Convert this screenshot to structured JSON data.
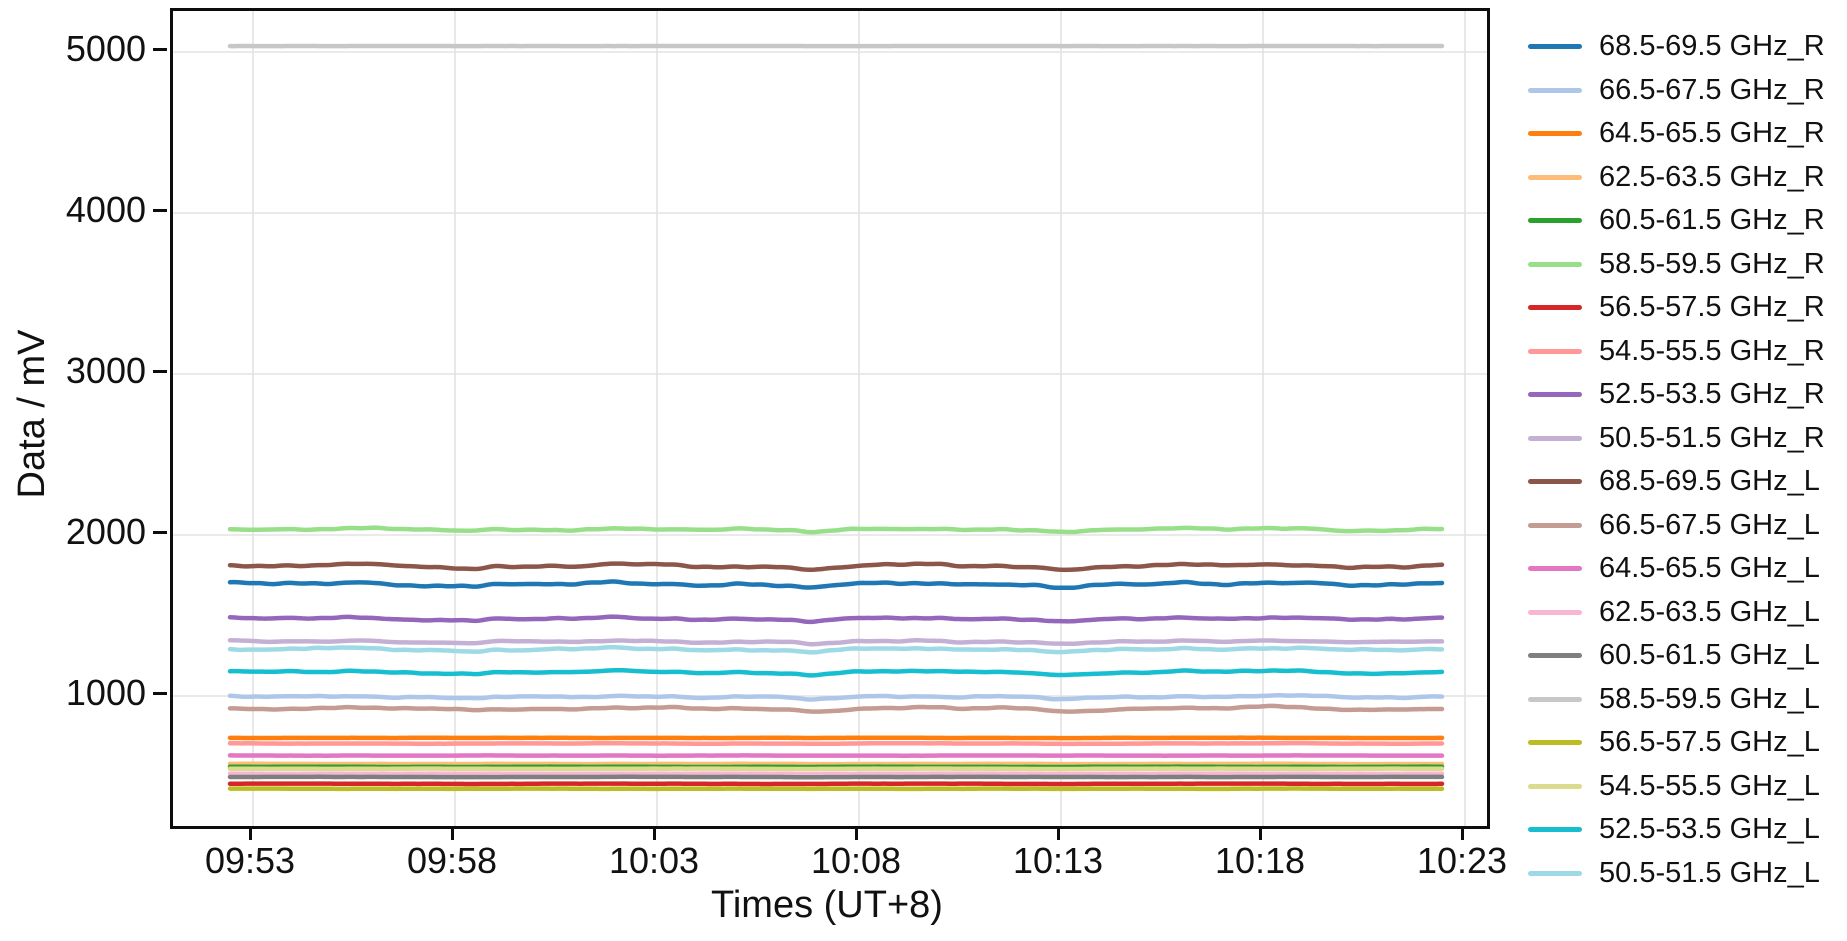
{
  "chart_data": {
    "type": "line",
    "title": "",
    "xlabel": "Times (UT+8)",
    "ylabel": "Data / mV",
    "x_tick_labels": [
      "09:53",
      "09:58",
      "10:03",
      "10:08",
      "10:13",
      "10:18",
      "10:23"
    ],
    "x_tick_minutes": [
      0,
      5,
      10,
      15,
      20,
      25,
      30
    ],
    "y_ticks": [
      1000,
      2000,
      3000,
      4000,
      5000
    ],
    "ylim": [
      193,
      5255
    ],
    "x_start_min": -0.57,
    "x_end_min": 29.43,
    "grid": true,
    "legend_position": "right-outside",
    "common_dips_min": [
      5.5,
      13.8,
      20.0
    ],
    "series": [
      {
        "label": "68.5-69.5 GHz_R",
        "color": "#1f77b4",
        "mean_mV": 1695,
        "noise_mV": 16,
        "noisy": true
      },
      {
        "label": "66.5-67.5 GHz_R",
        "color": "#aec7e8",
        "mean_mV": 995,
        "noise_mV": 10,
        "noisy": true
      },
      {
        "label": "64.5-65.5 GHz_R",
        "color": "#ff7f0e",
        "mean_mV": 740,
        "noise_mV": 2,
        "noisy": false
      },
      {
        "label": "62.5-63.5 GHz_R",
        "color": "#ffbb78",
        "mean_mV": 578,
        "noise_mV": 2,
        "noisy": false
      },
      {
        "label": "60.5-61.5 GHz_R",
        "color": "#2ca02c",
        "mean_mV": 560,
        "noise_mV": 2,
        "noisy": false
      },
      {
        "label": "58.5-59.5 GHz_R",
        "color": "#98df8a",
        "mean_mV": 2035,
        "noise_mV": 11,
        "noisy": true
      },
      {
        "label": "56.5-57.5 GHz_R",
        "color": "#d62728",
        "mean_mV": 455,
        "noise_mV": 2,
        "noisy": false
      },
      {
        "label": "54.5-55.5 GHz_R",
        "color": "#ff9896",
        "mean_mV": 705,
        "noise_mV": 3,
        "noisy": false
      },
      {
        "label": "52.5-53.5 GHz_R",
        "color": "#9467bd",
        "mean_mV": 1480,
        "noise_mV": 12,
        "noisy": true
      },
      {
        "label": "50.5-51.5 GHz_R",
        "color": "#c5b0d5",
        "mean_mV": 1338,
        "noise_mV": 11,
        "noisy": true
      },
      {
        "label": "68.5-69.5 GHz_L",
        "color": "#8c564b",
        "mean_mV": 1808,
        "noise_mV": 14,
        "noisy": true
      },
      {
        "label": "66.5-67.5 GHz_L",
        "color": "#c49c94",
        "mean_mV": 922,
        "noise_mV": 11,
        "noisy": true
      },
      {
        "label": "64.5-65.5 GHz_L",
        "color": "#e377c2",
        "mean_mV": 630,
        "noise_mV": 2,
        "noisy": false
      },
      {
        "label": "62.5-63.5 GHz_L",
        "color": "#f7b6d2",
        "mean_mV": 517,
        "noise_mV": 2,
        "noisy": false
      },
      {
        "label": "60.5-61.5 GHz_L",
        "color": "#7f7f7f",
        "mean_mV": 497,
        "noise_mV": 2,
        "noisy": false
      },
      {
        "label": "58.5-59.5 GHz_L",
        "color": "#c7c7c7",
        "mean_mV": 5037,
        "noise_mV": 1,
        "noisy": false
      },
      {
        "label": "56.5-57.5 GHz_L",
        "color": "#bcbd22",
        "mean_mV": 424,
        "noise_mV": 2,
        "noisy": false
      },
      {
        "label": "54.5-55.5 GHz_L",
        "color": "#dbdb8d",
        "mean_mV": 548,
        "noise_mV": 2,
        "noisy": false
      },
      {
        "label": "52.5-53.5 GHz_L",
        "color": "#17becf",
        "mean_mV": 1148,
        "noise_mV": 10,
        "noisy": true
      },
      {
        "label": "50.5-51.5 GHz_L",
        "color": "#9edae5",
        "mean_mV": 1290,
        "noise_mV": 12,
        "noisy": true
      }
    ]
  }
}
